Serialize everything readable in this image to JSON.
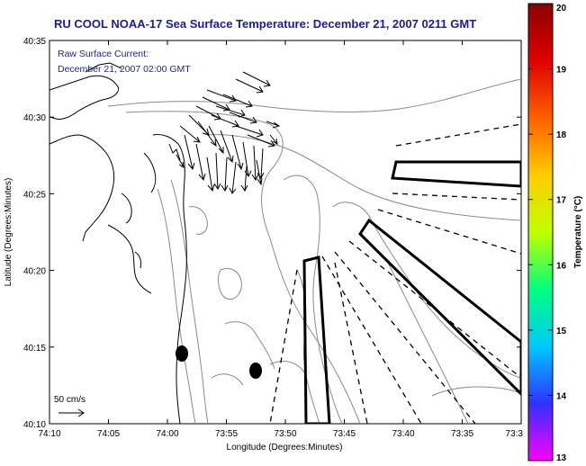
{
  "title": "RU COOL  NOAA-17  Sea Surface Temperature:  December 21, 2007 0211 GMT",
  "current_note": {
    "line1": "Raw Surface Current:",
    "line2": "December 21, 2007 02:00 GMT"
  },
  "axes": {
    "xlabel": "Longitude (Degrees:Minutes)",
    "ylabel": "Latitude (Degrees:Minutes)",
    "x_ticks": [
      "74:10",
      "74:05",
      "74:00",
      "73:55",
      "73:50",
      "73:45",
      "73:40",
      "73:35",
      "73:3"
    ],
    "y_ticks": [
      "40:10",
      "40:15",
      "40:20",
      "40:25",
      "40:30",
      "40:35"
    ]
  },
  "scale_arrow": {
    "label": "50 cm/s"
  },
  "colorbar": {
    "label": "Temperature (°C)",
    "ticks": [
      "20",
      "19",
      "18",
      "17",
      "16",
      "15",
      "14",
      "13"
    ],
    "min": 13,
    "max": 20,
    "colors": [
      "#ff00ff",
      "#3030ff",
      "#00c8ff",
      "#00ff80",
      "#c0ff00",
      "#ffcc00",
      "#ff6000",
      "#e00000",
      "#8b0000"
    ]
  }
}
